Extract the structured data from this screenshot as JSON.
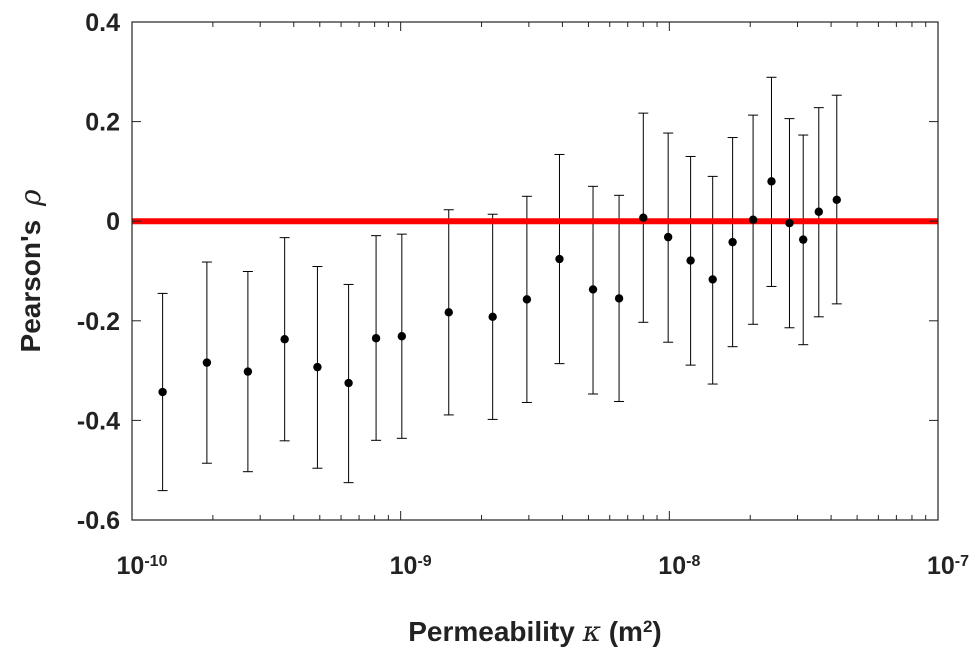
{
  "chart_data": {
    "type": "scatter",
    "xscale": "log",
    "xlim": [
      1e-10,
      1e-07
    ],
    "ylim": [
      -0.6,
      0.4
    ],
    "grid": false,
    "legend": null,
    "xlabel": {
      "text": "Permeability",
      "symbol": "κ",
      "unit_open": "(m",
      "unit_exp": "2",
      "unit_close": ")"
    },
    "ylabel": {
      "text": "Pearson's",
      "symbol": "ρ"
    },
    "xticks": [
      {
        "value": 1e-10,
        "base": "10",
        "exp": "-10"
      },
      {
        "value": 1e-09,
        "base": "10",
        "exp": "-9"
      },
      {
        "value": 1e-08,
        "base": "10",
        "exp": "-8"
      },
      {
        "value": 1e-07,
        "base": "10",
        "exp": "-7"
      }
    ],
    "yticks": [
      {
        "value": 0.4,
        "label": "0.4"
      },
      {
        "value": 0.2,
        "label": "0.2"
      },
      {
        "value": 0,
        "label": "0"
      },
      {
        "value": -0.2,
        "label": "-0.2"
      },
      {
        "value": -0.4,
        "label": "-0.4"
      },
      {
        "value": -0.6,
        "label": "-0.6"
      }
    ],
    "reference_line": {
      "y": 0,
      "color": "#ff0000"
    },
    "marker_color": "#000000",
    "points": [
      {
        "x": 1.3e-10,
        "y": -0.343,
        "lo": -0.541,
        "hi": -0.145
      },
      {
        "x": 1.9e-10,
        "y": -0.284,
        "lo": -0.486,
        "hi": -0.082
      },
      {
        "x": 2.7e-10,
        "y": -0.302,
        "lo": -0.503,
        "hi": -0.101
      },
      {
        "x": 3.7e-10,
        "y": -0.237,
        "lo": -0.441,
        "hi": -0.033
      },
      {
        "x": 4.9e-10,
        "y": -0.293,
        "lo": -0.496,
        "hi": -0.091
      },
      {
        "x": 6.4e-10,
        "y": -0.325,
        "lo": -0.525,
        "hi": -0.127
      },
      {
        "x": 8.1e-10,
        "y": -0.235,
        "lo": -0.44,
        "hi": -0.029
      },
      {
        "x": 1.01e-09,
        "y": -0.231,
        "lo": -0.436,
        "hi": -0.026
      },
      {
        "x": 1.51e-09,
        "y": -0.183,
        "lo": -0.389,
        "hi": 0.023
      },
      {
        "x": 2.2e-09,
        "y": -0.192,
        "lo": -0.398,
        "hi": 0.014
      },
      {
        "x": 2.95e-09,
        "y": -0.157,
        "lo": -0.364,
        "hi": 0.05
      },
      {
        "x": 3.9e-09,
        "y": -0.076,
        "lo": -0.286,
        "hi": 0.134
      },
      {
        "x": 5.2e-09,
        "y": -0.137,
        "lo": -0.347,
        "hi": 0.07
      },
      {
        "x": 6.5e-09,
        "y": -0.155,
        "lo": -0.362,
        "hi": 0.052
      },
      {
        "x": 8e-09,
        "y": 0.007,
        "lo": -0.203,
        "hi": 0.217
      },
      {
        "x": 9.9e-09,
        "y": -0.032,
        "lo": -0.243,
        "hi": 0.177
      },
      {
        "x": 1.2e-08,
        "y": -0.079,
        "lo": -0.289,
        "hi": 0.13
      },
      {
        "x": 1.45e-08,
        "y": -0.117,
        "lo": -0.327,
        "hi": 0.09
      },
      {
        "x": 1.72e-08,
        "y": -0.042,
        "lo": -0.252,
        "hi": 0.168
      },
      {
        "x": 2.05e-08,
        "y": 0.003,
        "lo": -0.207,
        "hi": 0.213
      },
      {
        "x": 2.4e-08,
        "y": 0.08,
        "lo": -0.131,
        "hi": 0.289
      },
      {
        "x": 2.8e-08,
        "y": -0.004,
        "lo": -0.214,
        "hi": 0.206
      },
      {
        "x": 3.15e-08,
        "y": -0.037,
        "lo": -0.248,
        "hi": 0.173
      },
      {
        "x": 3.6e-08,
        "y": 0.019,
        "lo": -0.192,
        "hi": 0.228
      },
      {
        "x": 4.2e-08,
        "y": 0.043,
        "lo": -0.166,
        "hi": 0.253
      }
    ]
  }
}
